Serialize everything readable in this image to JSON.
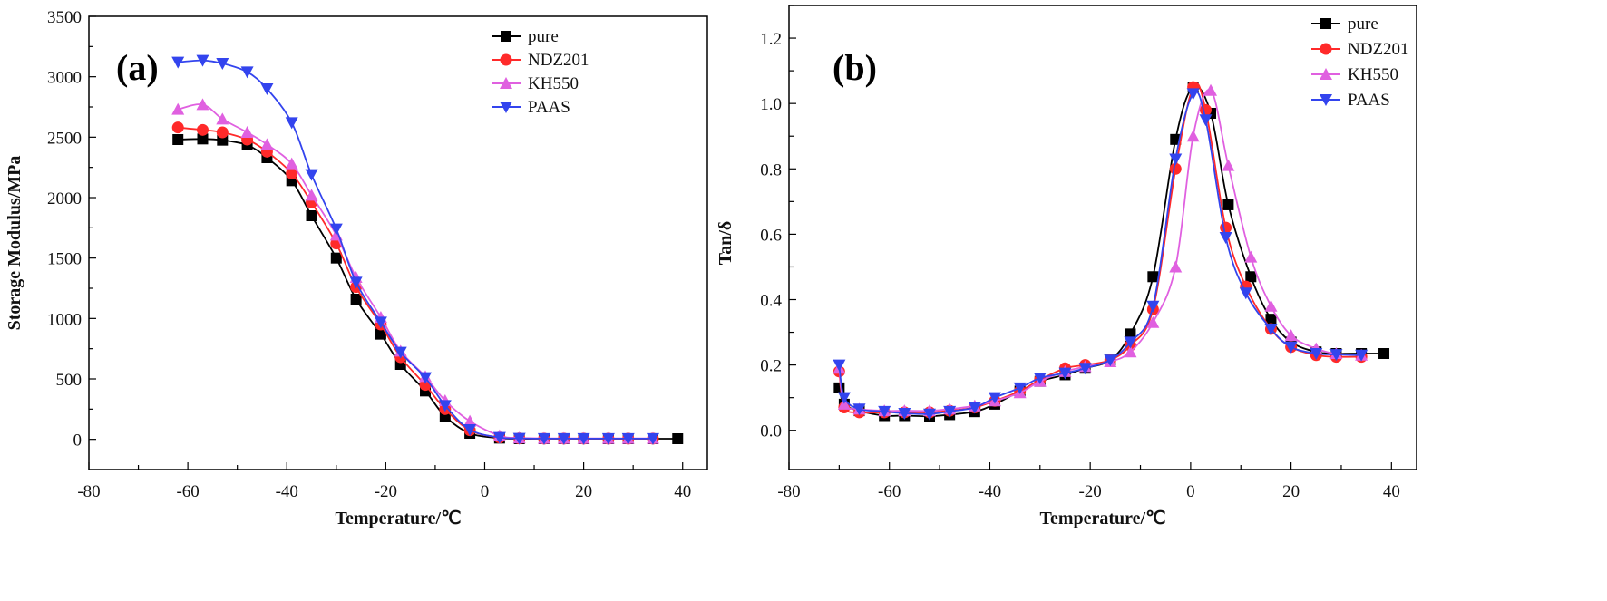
{
  "chart_data": [
    {
      "type": "line",
      "panel_label": "(a)",
      "xlabel": "Temperature/℃",
      "ylabel": "Storage Modulus/MPa",
      "xlim": [
        -80,
        45
      ],
      "ylim": [
        -250,
        3500
      ],
      "xticks": [
        -80,
        -60,
        -40,
        -20,
        0,
        20,
        40
      ],
      "yticks": [
        0,
        500,
        1000,
        1500,
        2000,
        2500,
        3000,
        3500
      ],
      "legend_position": "top-right",
      "series": [
        {
          "name": "pure",
          "color": "#000000",
          "marker": "square",
          "x": [
            -62,
            -57,
            -53,
            -48,
            -44,
            -39,
            -35,
            -30,
            -26,
            -21,
            -17,
            -12,
            -8,
            -3,
            3,
            7,
            12,
            16,
            20,
            25,
            29,
            34,
            39
          ],
          "y": [
            2480,
            2485,
            2475,
            2435,
            2330,
            2140,
            1850,
            1500,
            1160,
            870,
            620,
            400,
            190,
            50,
            10,
            5,
            5,
            5,
            5,
            5,
            5,
            5,
            5
          ]
        },
        {
          "name": "NDZ201",
          "color": "#ff2a2a",
          "marker": "circle",
          "x": [
            -62,
            -57,
            -53,
            -48,
            -44,
            -39,
            -35,
            -30,
            -26,
            -21,
            -17,
            -12,
            -8,
            -3,
            3,
            7,
            12,
            16,
            20,
            25,
            29,
            34
          ],
          "y": [
            2580,
            2560,
            2540,
            2480,
            2380,
            2200,
            1960,
            1620,
            1260,
            950,
            680,
            450,
            250,
            75,
            15,
            8,
            6,
            6,
            6,
            6,
            6,
            6
          ]
        },
        {
          "name": "KH550",
          "color": "#e060e0",
          "marker": "triangle-up",
          "x": [
            -62,
            -57,
            -53,
            -48,
            -44,
            -39,
            -35,
            -30,
            -26,
            -21,
            -17,
            -12,
            -8,
            -3,
            3,
            7,
            12,
            16,
            20,
            25,
            29,
            34
          ],
          "y": [
            2730,
            2770,
            2650,
            2540,
            2440,
            2280,
            2020,
            1690,
            1340,
            1010,
            730,
            520,
            320,
            150,
            30,
            12,
            8,
            8,
            8,
            8,
            8,
            8
          ]
        },
        {
          "name": "PAAS",
          "color": "#3344ee",
          "marker": "triangle-down",
          "x": [
            -62,
            -57,
            -53,
            -48,
            -44,
            -39,
            -35,
            -30,
            -26,
            -21,
            -17,
            -12,
            -8,
            -3,
            3,
            7,
            12,
            16,
            20,
            25,
            29,
            34
          ],
          "y": [
            3120,
            3135,
            3110,
            3040,
            2900,
            2620,
            2190,
            1740,
            1300,
            970,
            720,
            510,
            280,
            80,
            15,
            8,
            6,
            6,
            6,
            6,
            6,
            6
          ]
        }
      ]
    },
    {
      "type": "line",
      "panel_label": "(b)",
      "xlabel": "Temperature/℃",
      "ylabel": "Tan/δ",
      "xlim": [
        -80,
        45
      ],
      "ylim": [
        -0.12,
        1.3
      ],
      "xticks": [
        -80,
        -60,
        -40,
        -20,
        0,
        20,
        40
      ],
      "yticks": [
        0.0,
        0.2,
        0.4,
        0.6,
        0.8,
        1.0,
        1.2
      ],
      "legend_position": "top-right",
      "series": [
        {
          "name": "pure",
          "color": "#000000",
          "marker": "square",
          "x": [
            -70,
            -69,
            -66,
            -61,
            -57,
            -52,
            -48,
            -43,
            -39,
            -34,
            -30,
            -25,
            -21,
            -16,
            -12,
            -7.5,
            -3,
            0.5,
            4,
            7.5,
            12,
            16,
            20,
            25,
            29,
            34,
            38.5
          ],
          "y": [
            0.13,
            0.08,
            0.06,
            0.045,
            0.045,
            0.043,
            0.048,
            0.057,
            0.08,
            0.12,
            0.15,
            0.17,
            0.19,
            0.215,
            0.295,
            0.47,
            0.89,
            1.05,
            0.97,
            0.69,
            0.47,
            0.34,
            0.27,
            0.24,
            0.235,
            0.235,
            0.235
          ]
        },
        {
          "name": "NDZ201",
          "color": "#ff2a2a",
          "marker": "circle",
          "x": [
            -70,
            -69,
            -66,
            -61,
            -57,
            -52,
            -48,
            -43,
            -39,
            -34,
            -30,
            -25,
            -21,
            -16,
            -12,
            -7.5,
            -3,
            0.5,
            3,
            7,
            11,
            16,
            20,
            25,
            29,
            34
          ],
          "y": [
            0.18,
            0.07,
            0.055,
            0.055,
            0.055,
            0.055,
            0.06,
            0.07,
            0.09,
            0.12,
            0.155,
            0.19,
            0.2,
            0.215,
            0.26,
            0.37,
            0.8,
            1.05,
            0.98,
            0.62,
            0.44,
            0.31,
            0.255,
            0.23,
            0.225,
            0.225
          ]
        },
        {
          "name": "KH550",
          "color": "#e060e0",
          "marker": "triangle-up",
          "x": [
            -70,
            -69,
            -66,
            -61,
            -57,
            -52,
            -48,
            -43,
            -39,
            -34,
            -30,
            -25,
            -21,
            -16,
            -12,
            -7.5,
            -3,
            0.5,
            4,
            7.5,
            12,
            16,
            20,
            25,
            29,
            34
          ],
          "y": [
            0.19,
            0.08,
            0.065,
            0.06,
            0.06,
            0.06,
            0.065,
            0.075,
            0.09,
            0.115,
            0.15,
            0.18,
            0.195,
            0.21,
            0.24,
            0.33,
            0.5,
            0.9,
            1.04,
            0.81,
            0.53,
            0.38,
            0.29,
            0.25,
            0.235,
            0.23
          ]
        },
        {
          "name": "PAAS",
          "color": "#3344ee",
          "marker": "triangle-down",
          "x": [
            -70,
            -69,
            -66,
            -61,
            -57,
            -52,
            -48,
            -43,
            -39,
            -34,
            -30,
            -25,
            -21,
            -16,
            -12,
            -7.5,
            -3,
            0.5,
            3,
            7,
            11,
            16,
            20,
            25,
            29,
            34
          ],
          "y": [
            0.2,
            0.1,
            0.065,
            0.058,
            0.052,
            0.05,
            0.058,
            0.07,
            0.1,
            0.13,
            0.16,
            0.175,
            0.19,
            0.215,
            0.27,
            0.38,
            0.83,
            1.03,
            0.95,
            0.59,
            0.42,
            0.31,
            0.255,
            0.235,
            0.232,
            0.23
          ]
        }
      ]
    }
  ]
}
